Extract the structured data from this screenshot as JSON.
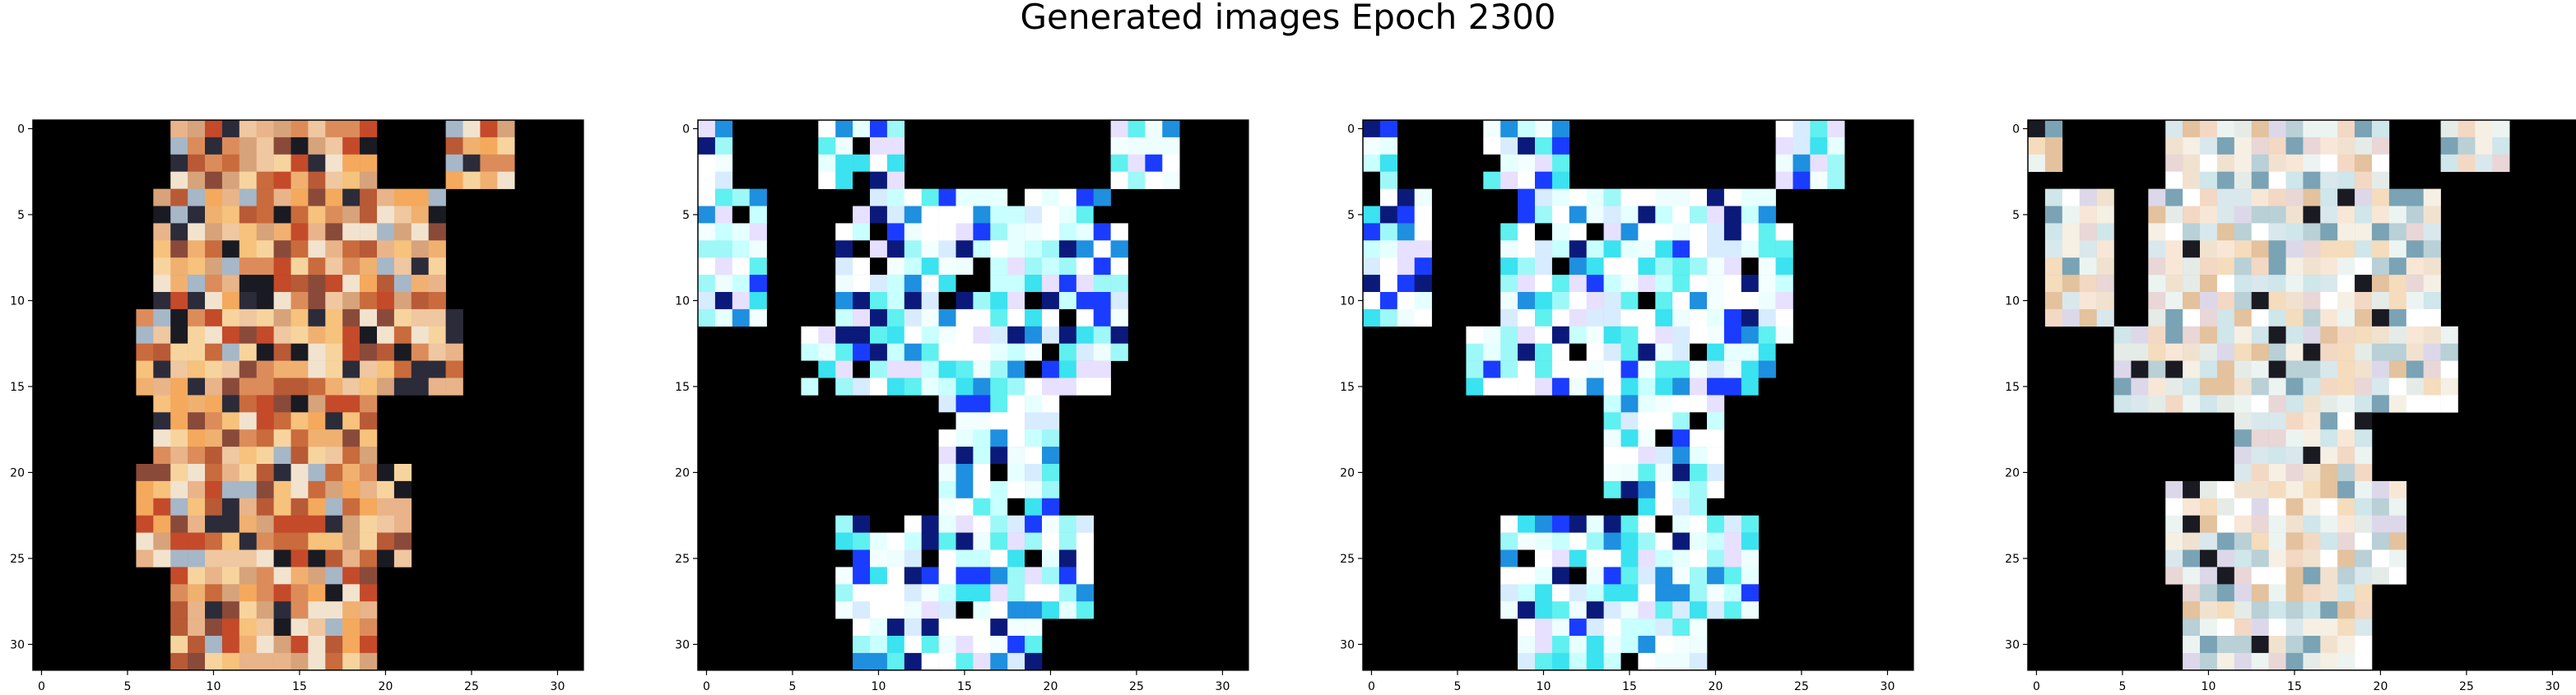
{
  "title": "Generated images Epoch 2300",
  "chart_data": [
    {
      "type": "heatmap",
      "description_visible": "image panel 1",
      "xticks": [
        "0",
        "5",
        "10",
        "15",
        "20",
        "25",
        "30"
      ],
      "yticks": [
        "0",
        "5",
        "10",
        "15",
        "20",
        "25",
        "30"
      ],
      "xlim": [
        -0.5,
        31.5
      ],
      "ylim": [
        31.5,
        -0.5
      ],
      "grid": false,
      "variant": "warm"
    },
    {
      "type": "heatmap",
      "xticks": [
        "0",
        "5",
        "10",
        "15",
        "20",
        "25",
        "30"
      ],
      "yticks": [
        "0",
        "5",
        "10",
        "15",
        "20",
        "25",
        "30"
      ],
      "xlim": [
        -0.5,
        31.5
      ],
      "ylim": [
        31.5,
        -0.5
      ],
      "grid": false,
      "variant": "cyan"
    },
    {
      "type": "heatmap",
      "xticks": [
        "0",
        "5",
        "10",
        "15",
        "20",
        "25",
        "30"
      ],
      "yticks": [
        "0",
        "5",
        "10",
        "15",
        "20",
        "25",
        "30"
      ],
      "xlim": [
        -0.5,
        31.5
      ],
      "ylim": [
        31.5,
        -0.5
      ],
      "grid": false,
      "variant": "cyan"
    },
    {
      "type": "heatmap",
      "xticks": [
        "0",
        "5",
        "10",
        "15",
        "20",
        "25",
        "30"
      ],
      "yticks": [
        "0",
        "5",
        "10",
        "15",
        "20",
        "25",
        "30"
      ],
      "xlim": [
        -0.5,
        31.5
      ],
      "ylim": [
        31.5,
        -0.5
      ],
      "grid": false,
      "variant": "pastel"
    }
  ]
}
